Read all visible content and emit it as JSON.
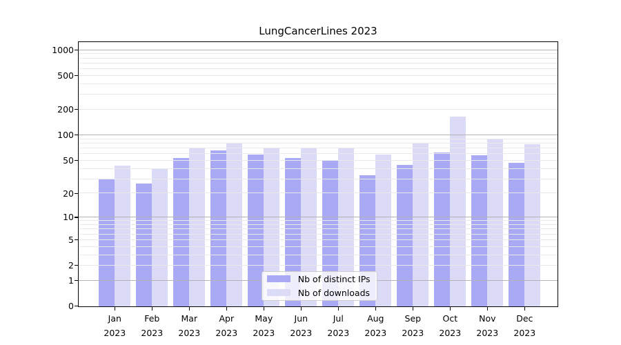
{
  "chart_data": {
    "type": "bar",
    "title": "LungCancerLines 2023",
    "y_scale": "log1p",
    "categories": [
      "Jan",
      "Feb",
      "Mar",
      "Apr",
      "May",
      "Jun",
      "Jul",
      "Aug",
      "Sep",
      "Oct",
      "Nov",
      "Dec"
    ],
    "year": "2023",
    "series": [
      {
        "name": "Nb of distinct IPs",
        "color": "#a9a9f6",
        "values": [
          30,
          26,
          53,
          65,
          58,
          53,
          50,
          33,
          44,
          62,
          57,
          47
        ]
      },
      {
        "name": "Nb of downloads",
        "color": "#dbdbf8",
        "values": [
          43,
          40,
          70,
          81,
          71,
          69,
          71,
          58,
          79,
          165,
          88,
          77
        ]
      }
    ],
    "ytick_labels": [
      "0",
      "1",
      "2",
      "5",
      "10",
      "20",
      "50",
      "100",
      "200",
      "500",
      "1000"
    ],
    "ytick_values": [
      0,
      1,
      2,
      5,
      10,
      20,
      50,
      100,
      200,
      500,
      1000
    ],
    "ylim": [
      0,
      1255
    ],
    "grid": {
      "major_color": "#b3b3b3",
      "minor_color": "#e9e9e9",
      "major_at": [
        1,
        10,
        100,
        1000
      ],
      "minor_at": [
        2,
        3,
        4,
        5,
        6,
        7,
        8,
        9,
        20,
        30,
        40,
        50,
        60,
        70,
        80,
        90,
        200,
        300,
        400,
        500,
        600,
        700,
        800,
        900
      ]
    },
    "legend": {
      "position": "lower center"
    },
    "colors": {
      "axis": "#000000",
      "background": "#ffffff",
      "text": "#000000"
    }
  }
}
